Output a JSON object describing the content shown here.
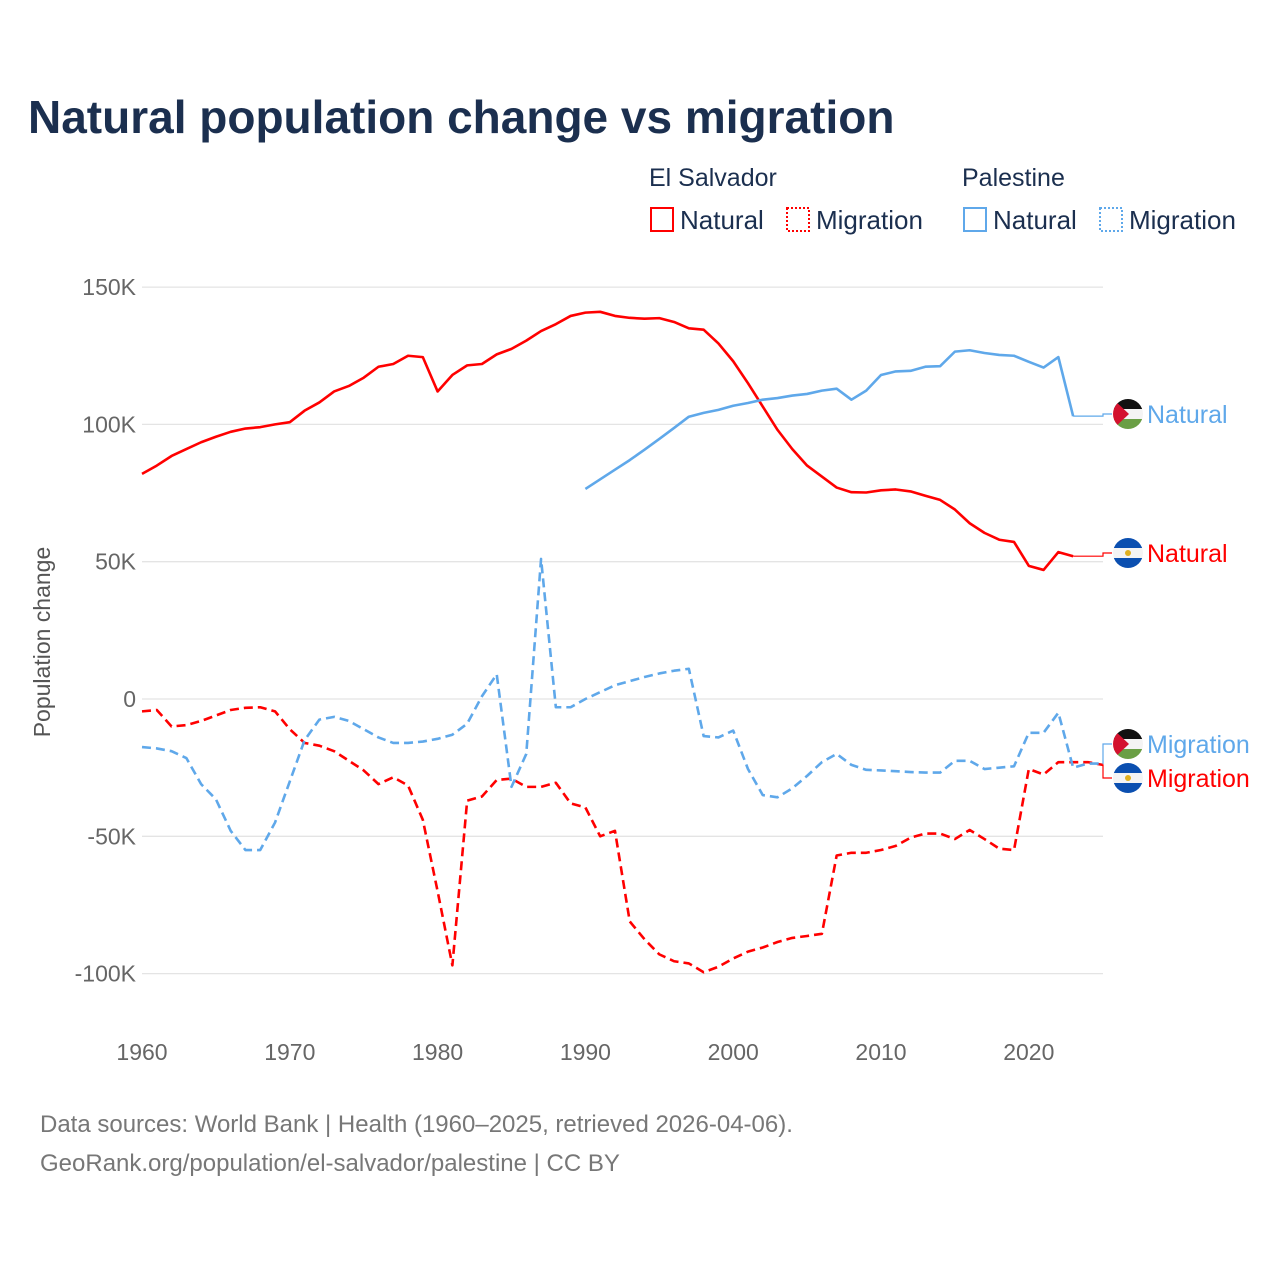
{
  "title": "Natural population change vs migration",
  "legend": {
    "groups": [
      {
        "name": "El Salvador",
        "items": [
          "Natural",
          "Migration"
        ],
        "color": "#ff0000"
      },
      {
        "name": "Palestine",
        "items": [
          "Natural",
          "Migration"
        ],
        "color": "#5fa8ea"
      }
    ]
  },
  "footer": {
    "line1": "Data sources: World Bank | Health (1960–2025, retrieved 2026-04-06).",
    "line2": "GeoRank.org/population/el-salvador/palestine | CC BY"
  },
  "chart_data": {
    "type": "line",
    "title": "Natural population change vs migration",
    "xlabel": "",
    "ylabel": "Population change",
    "xlim": [
      1960,
      2025
    ],
    "ylim": [
      -100000,
      150000
    ],
    "x_ticks": [
      1960,
      1970,
      1980,
      1990,
      2000,
      2010,
      2020
    ],
    "x_tick_labels": [
      "1960",
      "1970",
      "1980",
      "1990",
      "2000",
      "2010",
      "2020"
    ],
    "y_ticks": [
      150000,
      100000,
      50000,
      0,
      -50000,
      -100000
    ],
    "y_tick_labels": [
      "150K",
      "100K",
      "50K",
      "0",
      "-50K",
      "-100K"
    ],
    "grid": true,
    "legend_position": "top-right",
    "series": [
      {
        "name": "El Salvador Natural",
        "country": "El Salvador",
        "kind": "Natural",
        "end_label": "Natural",
        "color": "#ff0000",
        "dash": "solid",
        "flag": "el-salvador-flag",
        "start": 1960,
        "values_k": [
          82,
          85,
          88.5,
          91,
          93.5,
          95.5,
          97.3,
          98.5,
          99,
          100,
          100.8,
          105,
          108,
          112,
          114,
          117,
          121,
          122,
          125,
          124.5,
          112,
          118,
          121.5,
          122,
          125.5,
          127.5,
          130.5,
          134,
          136.5,
          139.5,
          140.7,
          141,
          139.5,
          138.8,
          138.5,
          138.7,
          137.3,
          135,
          134.5,
          129.5,
          123,
          115,
          106.5,
          98,
          91,
          85,
          81,
          77,
          75.3,
          75.2,
          76,
          76.3,
          75.6,
          74,
          72.5,
          69,
          64,
          60.5,
          58,
          57.2,
          48.5,
          47,
          53.5,
          52
        ]
      },
      {
        "name": "El Salvador Migration",
        "country": "El Salvador",
        "kind": "Migration",
        "end_label": "Migration",
        "color": "#ff0000",
        "dash": "dashed",
        "flag": "el-salvador-flag",
        "start": 1960,
        "values_k": [
          -4.5,
          -4,
          -10,
          -9.5,
          -8,
          -6,
          -4,
          -3.2,
          -3,
          -4.5,
          -11,
          -16,
          -17,
          -19,
          -22.5,
          -26,
          -31,
          -28.5,
          -31.5,
          -44,
          -70,
          -97,
          -37,
          -35.5,
          -29.5,
          -29,
          -32,
          -32,
          -30.5,
          -38,
          -39.5,
          -50,
          -48,
          -81,
          -87.5,
          -93,
          -95.5,
          -96.3,
          -99.5,
          -97.5,
          -94.5,
          -92,
          -90.5,
          -88.5,
          -87,
          -86.3,
          -85.5,
          -57,
          -56,
          -56,
          -55,
          -53.5,
          -50.5,
          -49,
          -49,
          -51,
          -47.7,
          -51,
          -54.5,
          -55,
          -25.5,
          -27.5,
          -23,
          -23,
          -23,
          -24
        ]
      },
      {
        "name": "Palestine Natural",
        "country": "Palestine",
        "kind": "Natural",
        "end_label": "Natural",
        "color": "#5fa8ea",
        "dash": "solid",
        "flag": "palestine-flag",
        "start": 1990,
        "values_k": [
          76.5,
          80,
          83.5,
          87,
          90.8,
          94.7,
          98.7,
          102.8,
          104.2,
          105.3,
          106.8,
          107.8,
          109,
          109.6,
          110.5,
          111.1,
          112.3,
          113,
          109,
          112.3,
          118,
          119.3,
          119.5,
          121,
          121.2,
          126.5,
          127,
          126,
          125.3,
          125,
          122.8,
          120.7,
          124.5,
          103
        ]
      },
      {
        "name": "Palestine Migration",
        "country": "Palestine",
        "kind": "Migration",
        "end_label": "Migration",
        "color": "#5fa8ea",
        "dash": "dashed",
        "flag": "palestine-flag",
        "start": 1960,
        "values_k": [
          -17.5,
          -18,
          -19,
          -21.5,
          -31,
          -36.5,
          -48,
          -55,
          -55,
          -45,
          -30,
          -15,
          -7.5,
          -6.5,
          -8,
          -11,
          -14,
          -16,
          -16,
          -15.5,
          -14.5,
          -13,
          -9,
          1,
          9,
          -32,
          -20,
          51,
          -3,
          -3,
          0,
          2.5,
          5,
          6.5,
          8,
          9.3,
          10.3,
          11,
          -13.5,
          -14,
          -11.5,
          -25.5,
          -35,
          -35.8,
          -32.5,
          -28,
          -23,
          -20,
          -24,
          -25.8,
          -26,
          -26.3,
          -26.6,
          -26.8,
          -26.8,
          -22.5,
          -22.5,
          -25.5,
          -25,
          -24.5,
          -12.3,
          -12.3,
          -5,
          -25,
          -23.5,
          -23.5
        ]
      }
    ]
  }
}
